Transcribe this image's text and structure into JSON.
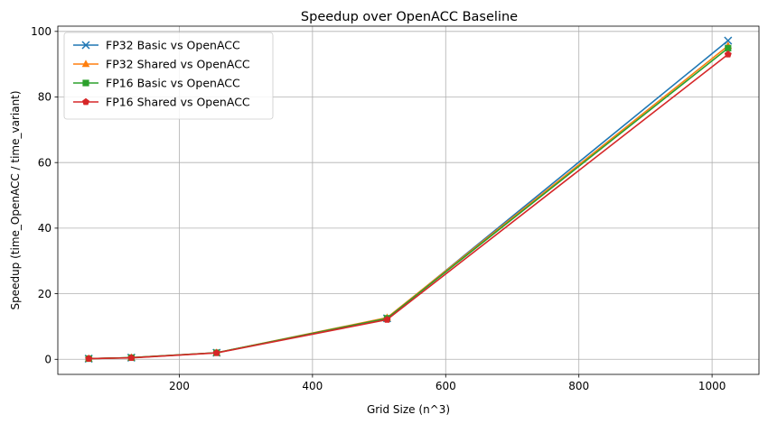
{
  "chart_data": {
    "type": "line",
    "title": "Speedup over OpenACC Baseline",
    "xlabel": "Grid Size (n^3)",
    "ylabel": "Speedup (time_OpenACC / time_variant)",
    "xlim": [
      17.6,
      1070.4
    ],
    "ylim": [
      -4.6,
      101.6
    ],
    "x": [
      64,
      128,
      256,
      512,
      1024
    ],
    "xticks": [
      200,
      400,
      600,
      800,
      1000
    ],
    "yticks": [
      0,
      20,
      40,
      60,
      80,
      100
    ],
    "grid": true,
    "legend_position": "upper-left",
    "series": [
      {
        "name": "FP32 Basic vs OpenACC",
        "values": [
          0.2,
          0.5,
          2.0,
          12.5,
          97.2
        ],
        "color": "#1f77b4",
        "marker": "x"
      },
      {
        "name": "FP32 Shared vs OpenACC",
        "values": [
          0.2,
          0.5,
          2.0,
          12.7,
          95.6
        ],
        "color": "#ff7f0e",
        "marker": "triangle"
      },
      {
        "name": "FP16 Basic vs OpenACC",
        "values": [
          0.2,
          0.5,
          2.0,
          12.5,
          94.9
        ],
        "color": "#2ca02c",
        "marker": "square"
      },
      {
        "name": "FP16 Shared vs OpenACC",
        "values": [
          0.2,
          0.45,
          1.95,
          12.1,
          93.0
        ],
        "color": "#d62728",
        "marker": "pentagon"
      }
    ]
  }
}
